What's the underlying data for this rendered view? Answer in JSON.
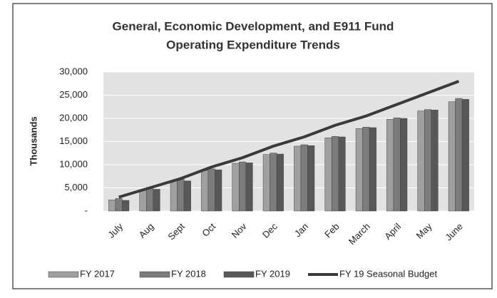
{
  "chart_data": {
    "type": "bar",
    "title": "General, Economic Development, and E911 Fund",
    "subtitle": "Operating Expenditure Trends",
    "y_label": "Thousands",
    "categories": [
      "July",
      "Aug",
      "Sept",
      "Oct",
      "Nov",
      "Dec",
      "Jan",
      "Feb",
      "March",
      "April",
      "May",
      "June"
    ],
    "series": [
      {
        "name": "FY 2017",
        "color": "#a0a0a0",
        "values": [
          2400,
          4600,
          6600,
          8800,
          10300,
          12200,
          14000,
          15800,
          17800,
          19800,
          21600,
          23600
        ]
      },
      {
        "name": "FY 2018",
        "color": "#7c7c7c",
        "values": [
          2700,
          4900,
          6900,
          9100,
          10600,
          12500,
          14300,
          16100,
          18100,
          20100,
          21900,
          24300
        ]
      },
      {
        "name": "FY 2019",
        "color": "#585858",
        "values": [
          2300,
          4700,
          6500,
          8900,
          10400,
          12300,
          14100,
          16000,
          18000,
          20000,
          21800,
          24100
        ]
      },
      {
        "name": "FY 19 Seasonal Budget",
        "type": "line",
        "color": "#3a3a3a",
        "values": [
          3000,
          5000,
          7000,
          9500,
          11500,
          14000,
          16000,
          18500,
          20500,
          23000,
          25500,
          28000
        ]
      }
    ],
    "ylim": [
      0,
      30000
    ],
    "yticks": [
      {
        "value": 0,
        "label": "-"
      },
      {
        "value": 5000,
        "label": "5,000"
      },
      {
        "value": 10000,
        "label": "10,000"
      },
      {
        "value": 15000,
        "label": "15,000"
      },
      {
        "value": 20000,
        "label": "20,000"
      },
      {
        "value": 25000,
        "label": "25,000"
      },
      {
        "value": 30000,
        "label": "30,000"
      }
    ],
    "grid": true,
    "legend": "bottom"
  }
}
